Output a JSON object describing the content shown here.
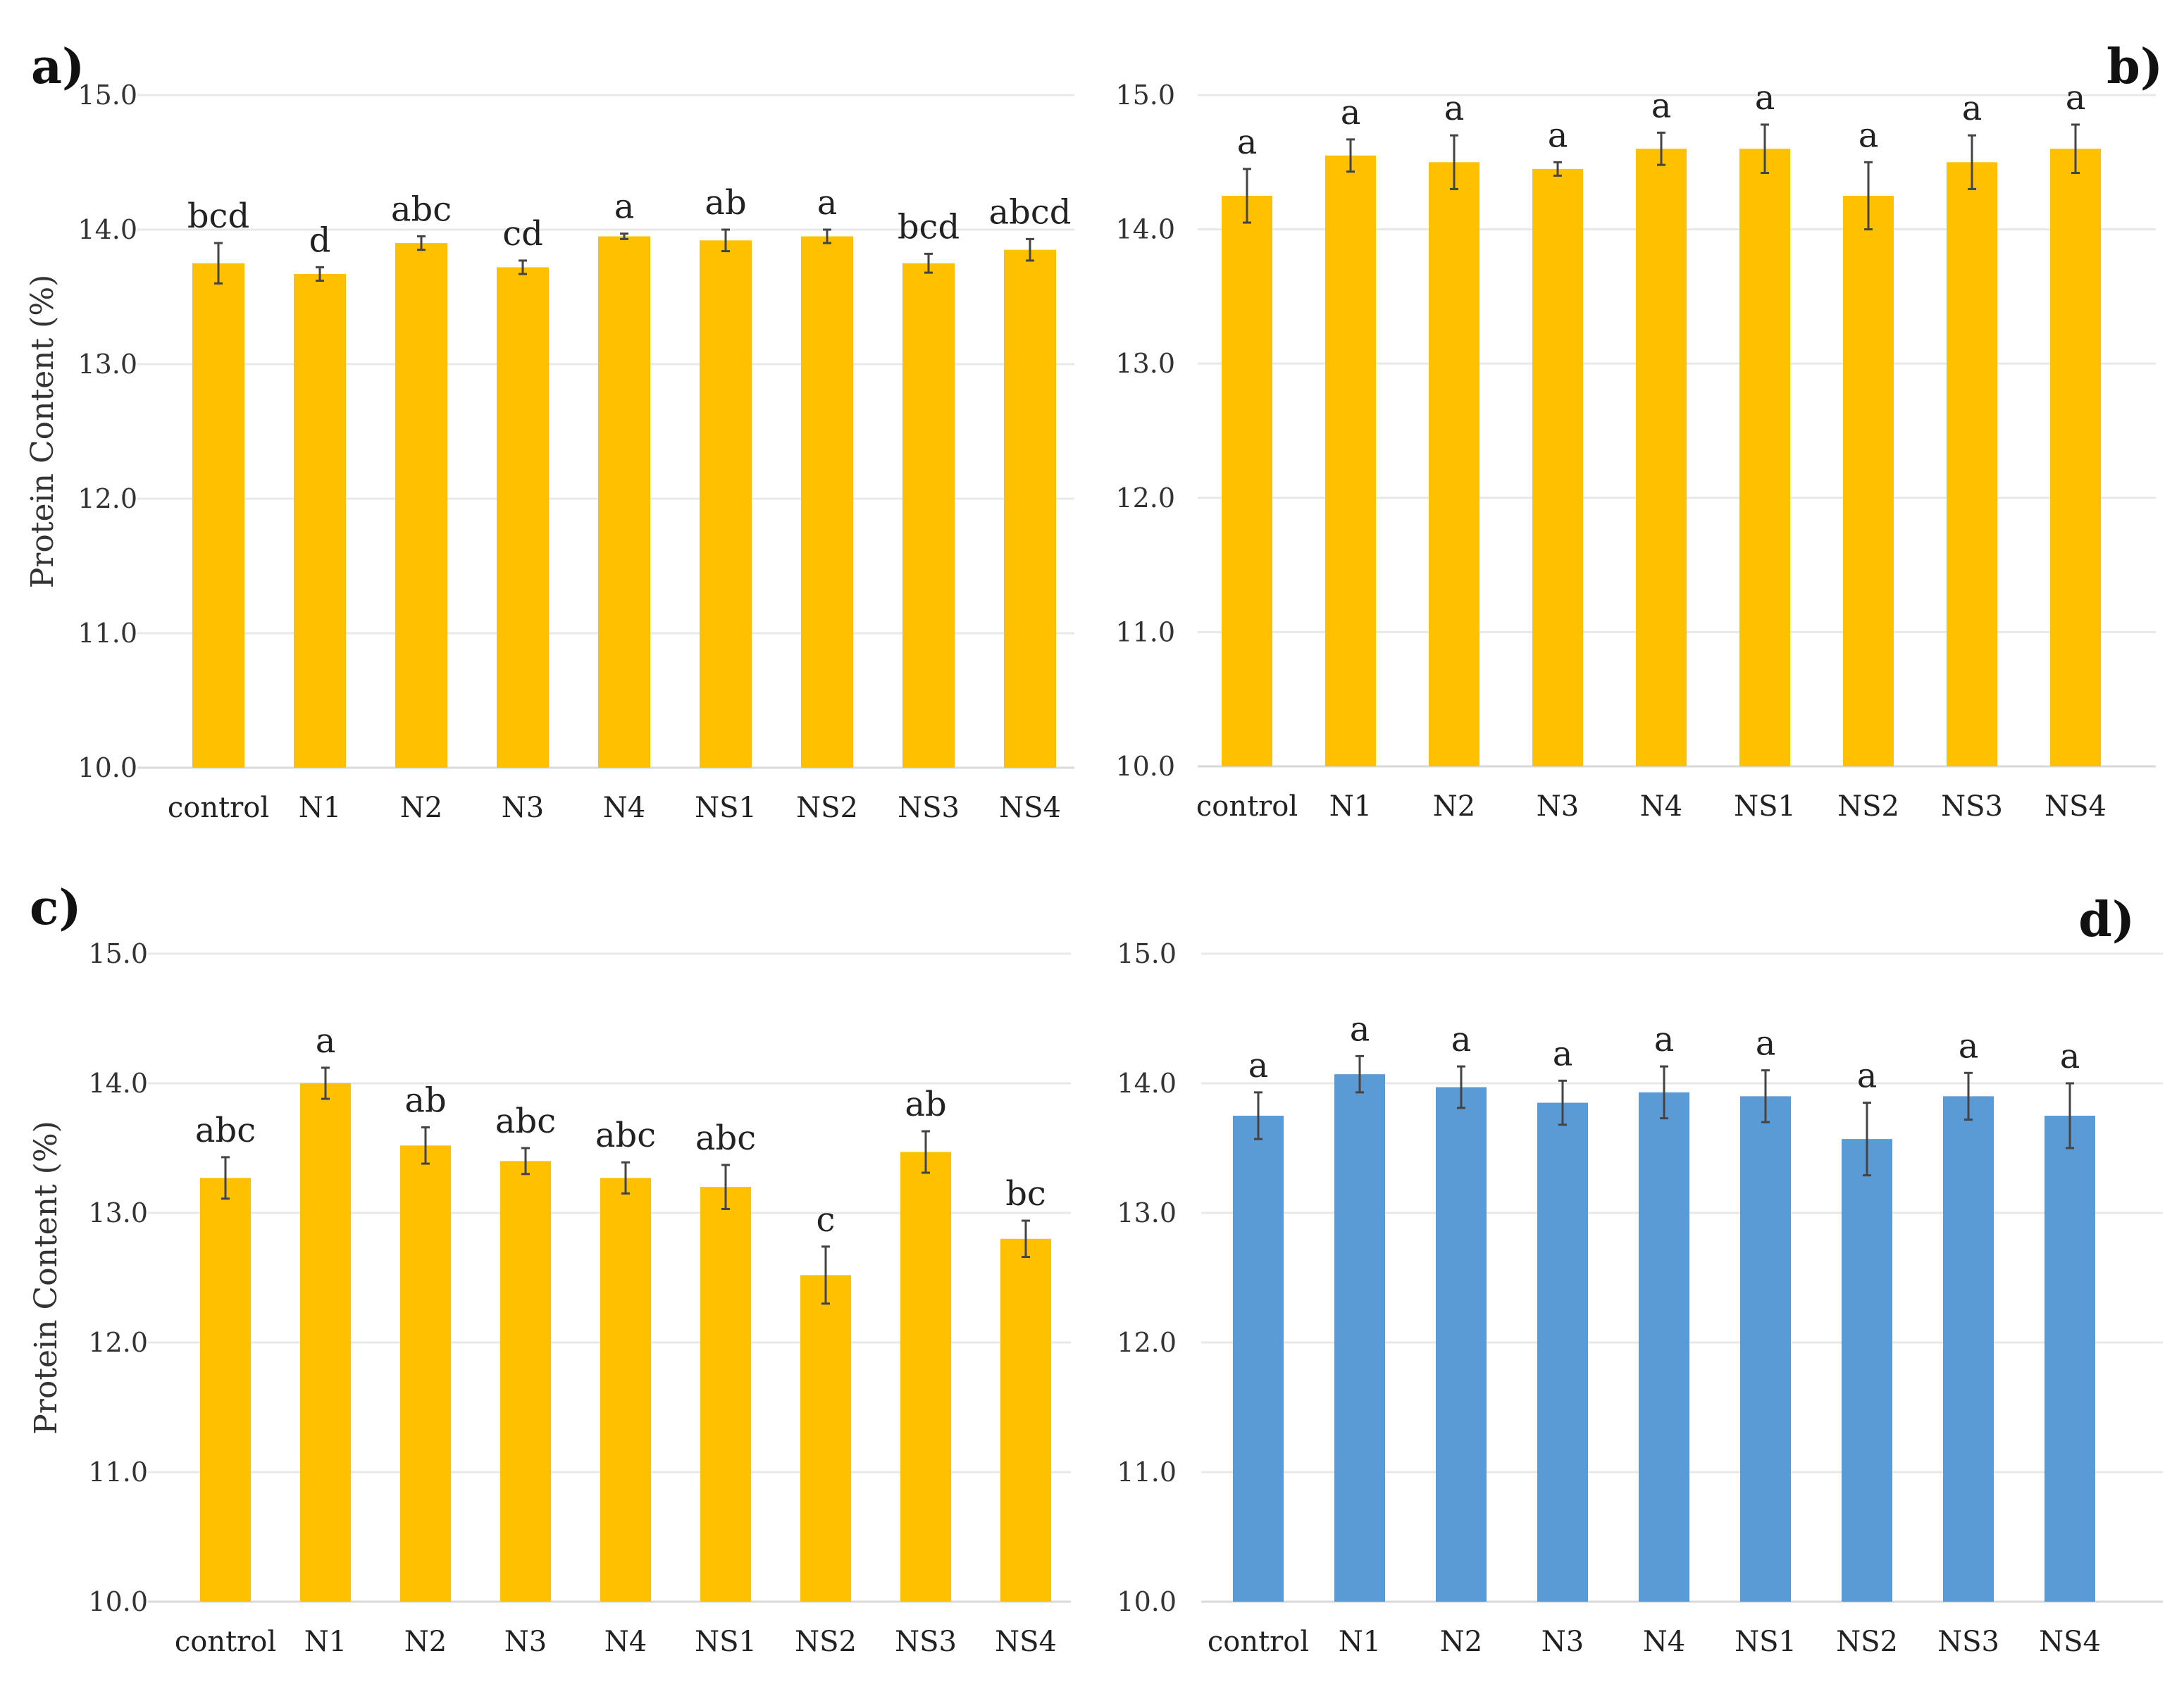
{
  "figure": {
    "ylabel": "Protein Content (%)"
  },
  "chart_data": [
    {
      "type": "bar",
      "panel": "a)",
      "categories": [
        "control",
        "N1",
        "N2",
        "N3",
        "N4",
        "NS1",
        "NS2",
        "NS3",
        "NS4"
      ],
      "values": [
        13.75,
        13.67,
        13.9,
        13.72,
        13.95,
        13.92,
        13.95,
        13.75,
        13.85
      ],
      "errors": [
        0.15,
        0.05,
        0.05,
        0.05,
        0.02,
        0.08,
        0.05,
        0.07,
        0.08
      ],
      "significance": [
        "bcd",
        "d",
        "abc",
        "cd",
        "a",
        "ab",
        "a",
        "bcd",
        "abcd"
      ],
      "ylabel": "Protein Content (%)",
      "yticks": [
        "10.0",
        "11.0",
        "12.0",
        "13.0",
        "14.0",
        "15.0"
      ],
      "ylim": [
        10,
        15
      ],
      "color": "#FFC000"
    },
    {
      "type": "bar",
      "panel": "b)",
      "categories": [
        "control",
        "N1",
        "N2",
        "N3",
        "N4",
        "NS1",
        "NS2",
        "NS3",
        "NS4"
      ],
      "values": [
        14.25,
        14.55,
        14.5,
        14.45,
        14.6,
        14.6,
        14.25,
        14.5,
        14.6
      ],
      "errors": [
        0.2,
        0.12,
        0.2,
        0.05,
        0.12,
        0.18,
        0.25,
        0.2,
        0.18
      ],
      "significance": [
        "a",
        "a",
        "a",
        "a",
        "a",
        "a",
        "a",
        "a",
        "a"
      ],
      "ylabel": "",
      "yticks": [
        "10.0",
        "11.0",
        "12.0",
        "13.0",
        "14.0",
        "15.0"
      ],
      "ylim": [
        10,
        15
      ],
      "color": "#FFC000"
    },
    {
      "type": "bar",
      "panel": "c)",
      "categories": [
        "control",
        "N1",
        "N2",
        "N3",
        "N4",
        "NS1",
        "NS2",
        "NS3",
        "NS4"
      ],
      "values": [
        13.27,
        14.0,
        13.52,
        13.4,
        13.27,
        13.2,
        12.52,
        13.47,
        12.8
      ],
      "errors": [
        0.16,
        0.12,
        0.14,
        0.1,
        0.12,
        0.17,
        0.22,
        0.16,
        0.14
      ],
      "significance": [
        "abc",
        "a",
        "ab",
        "abc",
        "abc",
        "abc",
        "c",
        "ab",
        "bc"
      ],
      "ylabel": "Protein Content (%)",
      "yticks": [
        "10.0",
        "11.0",
        "12.0",
        "13.0",
        "14.0",
        "15.0"
      ],
      "ylim": [
        10,
        15
      ],
      "color": "#FFC000"
    },
    {
      "type": "bar",
      "panel": "d)",
      "categories": [
        "control",
        "N1",
        "N2",
        "N3",
        "N4",
        "NS1",
        "NS2",
        "NS3",
        "NS4"
      ],
      "values": [
        13.75,
        14.07,
        13.97,
        13.85,
        13.93,
        13.9,
        13.57,
        13.9,
        13.75
      ],
      "errors": [
        0.18,
        0.14,
        0.16,
        0.17,
        0.2,
        0.2,
        0.28,
        0.18,
        0.25
      ],
      "significance": [
        "a",
        "a",
        "a",
        "a",
        "a",
        "a",
        "a",
        "a",
        "a"
      ],
      "ylabel": "",
      "yticks": [
        "10.0",
        "11.0",
        "12.0",
        "13.0",
        "14.0",
        "15.0"
      ],
      "ylim": [
        10,
        15
      ],
      "color": "#5B9BD5"
    }
  ]
}
